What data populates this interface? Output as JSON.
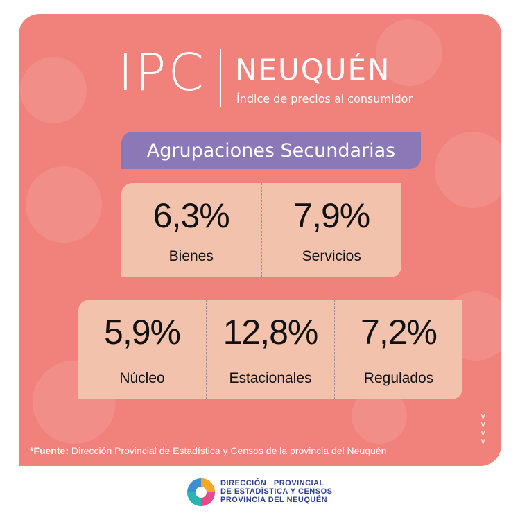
{
  "header": {
    "title_left": "IPC",
    "title_right": "NEUQUÉN",
    "subtitle": "Índice de precios al consumidor"
  },
  "section": {
    "label": "Agrupaciones Secundarias"
  },
  "group1": {
    "items": [
      {
        "value": "6,3%",
        "label": "Bienes"
      },
      {
        "value": "7,9%",
        "label": "Servicios"
      }
    ]
  },
  "group2": {
    "items": [
      {
        "value": "5,9%",
        "label": "Núcleo"
      },
      {
        "value": "12,8%",
        "label": "Estacionales"
      },
      {
        "value": "7,2%",
        "label": "Regulados"
      }
    ]
  },
  "source": {
    "prefix": "*Fuente:",
    "text": "Dirección Provincial de Estadística y Censos de la provincia del Neuquén"
  },
  "footer": {
    "line1": "DIRECCIÓN   PROVINCIAL",
    "line2": "DE ESTADÍSTICA Y CENSOS",
    "line3": "PROVINCIA DEL NEUQUÉN"
  },
  "colors": {
    "card": "#f0827b",
    "pill": "#8b78b6",
    "box": "#f2c2ad",
    "logo_blue": "#2e3f8f"
  }
}
